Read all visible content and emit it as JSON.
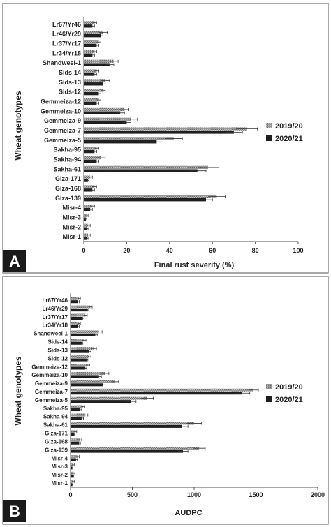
{
  "panels": [
    {
      "panel_label": "A",
      "ylabel": "Wheat genotypes",
      "xlabel": "Final rust severity (%)"
    },
    {
      "panel_label": "B",
      "ylabel": "Wheat genotypes",
      "xlabel": "AUDPC"
    }
  ],
  "colors": {
    "series_2019": "#9a9a9a",
    "series_2020": "#1f1f1f",
    "panel_label_bg": "#1a1a1a",
    "panel_label_fg": "#ffffff",
    "frame": "#6f6f6f"
  },
  "chart_data": [
    {
      "type": "bar",
      "orientation": "horizontal",
      "title": "",
      "xlabel": "Final rust severity (%)",
      "ylabel": "Wheat genotypes",
      "xlim": [
        0,
        100
      ],
      "xticks": [
        0,
        20,
        40,
        60,
        80,
        100
      ],
      "grid": false,
      "legend": "right",
      "categories": [
        "Misr-1",
        "Misr-2",
        "Misr-3",
        "Misr-4",
        "Giza-139",
        "Giza-168",
        "Giza-171",
        "Sakha-61",
        "Sakha-94",
        "Sakha-95",
        "Gemmeiza-5",
        "Gemmeiza-7",
        "Gemmeiza-9",
        "Gemmeiza-10",
        "Gemmeiza-12",
        "Sids-12",
        "Sids-13",
        "Sids-14",
        "Shandweel-1",
        "Lr34/Yr18",
        "Lr37/Yr17",
        "Lr46/Yr29",
        "Lr67/Yr46"
      ],
      "series": [
        {
          "name": "2019/20",
          "values": [
            2,
            2,
            1.5,
            4,
            62,
            5,
            3,
            58,
            8,
            6,
            42,
            76,
            22,
            19,
            7,
            9,
            10,
            6,
            14,
            5,
            7,
            9,
            5
          ],
          "errors": [
            1,
            1,
            0.5,
            1,
            4,
            1,
            1,
            5,
            2,
            1,
            4,
            5,
            3,
            2,
            1,
            1,
            2,
            1,
            2,
            1,
            1,
            2,
            1
          ]
        },
        {
          "name": "2020/21",
          "values": [
            1.5,
            1.5,
            1,
            3,
            57,
            4,
            2,
            53,
            6,
            5,
            34,
            70,
            20,
            17,
            6,
            7,
            9,
            5,
            12,
            4,
            6,
            8,
            4
          ],
          "errors": [
            0.5,
            0.5,
            0.5,
            1,
            3,
            1,
            0.5,
            4,
            1,
            1,
            3,
            4,
            2,
            2,
            1,
            1,
            1,
            1,
            2,
            1,
            1,
            1,
            1
          ]
        }
      ]
    },
    {
      "type": "bar",
      "orientation": "horizontal",
      "title": "",
      "xlabel": "AUDPC",
      "ylabel": "Wheat genotypes",
      "xlim": [
        0,
        2000
      ],
      "xticks": [
        0,
        500,
        1000,
        1500,
        2000
      ],
      "grid": false,
      "legend": "right",
      "categories": [
        "Misr-1",
        "Misr-2",
        "Misr-3",
        "Misr-4",
        "Giza-139",
        "Giza-168",
        "Giza-171",
        "Sakha-61",
        "Sakha-94",
        "Sakha-95",
        "Gemmeiza-5",
        "Gemmeiza-7",
        "Gemmeiza-9",
        "Gemmeiza-10",
        "Gemmeiza-12",
        "Sids-12",
        "Sids-13",
        "Sids-14",
        "Shandweel-1",
        "Lr34/Yr18",
        "Lr37/Yr17",
        "Lr46/Yr29",
        "Lr67/Yr46"
      ],
      "series": [
        {
          "name": "2019/20",
          "values": [
            20,
            25,
            20,
            55,
            1040,
            80,
            40,
            1000,
            120,
            100,
            620,
            1480,
            360,
            280,
            140,
            150,
            190,
            110,
            230,
            70,
            120,
            160,
            70
          ],
          "errors": [
            10,
            10,
            10,
            15,
            50,
            10,
            10,
            60,
            20,
            15,
            50,
            40,
            30,
            30,
            15,
            15,
            20,
            15,
            25,
            10,
            15,
            15,
            10
          ]
        },
        {
          "name": "2020/21",
          "values": [
            15,
            20,
            15,
            45,
            910,
            70,
            30,
            900,
            90,
            80,
            490,
            1390,
            260,
            230,
            120,
            130,
            150,
            90,
            200,
            60,
            100,
            140,
            60
          ],
          "errors": [
            5,
            5,
            5,
            10,
            40,
            10,
            5,
            50,
            15,
            10,
            40,
            60,
            20,
            20,
            10,
            10,
            15,
            10,
            20,
            10,
            10,
            10,
            10
          ]
        }
      ]
    }
  ]
}
